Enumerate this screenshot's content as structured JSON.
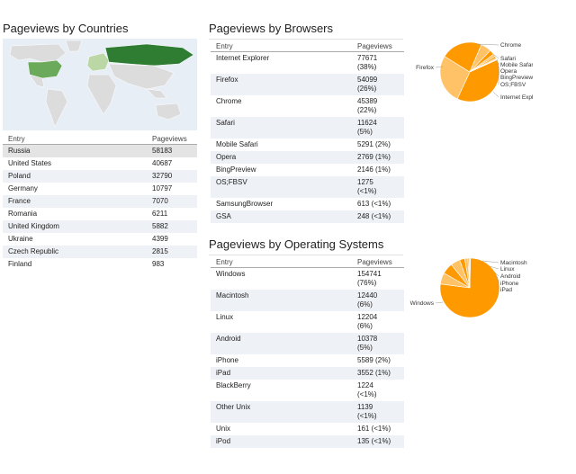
{
  "countries": {
    "title": "Pageviews by Countries",
    "col_entry": "Entry",
    "col_value": "Pageviews",
    "rows": [
      {
        "entry": "Russia",
        "value": "58183"
      },
      {
        "entry": "United States",
        "value": "40687"
      },
      {
        "entry": "Poland",
        "value": "32790"
      },
      {
        "entry": "Germany",
        "value": "10797"
      },
      {
        "entry": "France",
        "value": "7070"
      },
      {
        "entry": "Romania",
        "value": "6211"
      },
      {
        "entry": "United Kingdom",
        "value": "5882"
      },
      {
        "entry": "Ukraine",
        "value": "4399"
      },
      {
        "entry": "Czech Republic",
        "value": "2815"
      },
      {
        "entry": "Finland",
        "value": "983"
      }
    ]
  },
  "browsers": {
    "title": "Pageviews by Browsers",
    "col_entry": "Entry",
    "col_value": "Pageviews",
    "rows": [
      {
        "entry": "Internet Explorer",
        "value": "77671\n(38%)"
      },
      {
        "entry": "Firefox",
        "value": "54099\n(26%)"
      },
      {
        "entry": "Chrome",
        "value": "45389\n(22%)"
      },
      {
        "entry": "Safari",
        "value": "11624\n(5%)"
      },
      {
        "entry": "Mobile Safari",
        "value": "5291 (2%)"
      },
      {
        "entry": "Opera",
        "value": "2769 (1%)"
      },
      {
        "entry": "BingPreview",
        "value": "2146 (1%)"
      },
      {
        "entry": "OS;FBSV",
        "value": "1275\n(<1%)"
      },
      {
        "entry": "SamsungBrowser",
        "value": "613 (<1%)"
      },
      {
        "entry": "GSA",
        "value": "248 (<1%)"
      }
    ],
    "pie_labels": [
      "Chrome",
      "Safari",
      "Mobile Safari",
      "Opera",
      "BingPreview",
      "OS;FBSV",
      "Internet Explorer",
      "Firefox"
    ]
  },
  "os": {
    "title": "Pageviews by Operating Systems",
    "col_entry": "Entry",
    "col_value": "Pageviews",
    "rows": [
      {
        "entry": "Windows",
        "value": "154741\n(76%)"
      },
      {
        "entry": "Macintosh",
        "value": "12440\n(6%)"
      },
      {
        "entry": "Linux",
        "value": "12204\n(6%)"
      },
      {
        "entry": "Android",
        "value": "10378\n(5%)"
      },
      {
        "entry": "iPhone",
        "value": "5589 (2%)"
      },
      {
        "entry": "iPad",
        "value": "3552 (1%)"
      },
      {
        "entry": "BlackBerry",
        "value": "1224\n(<1%)"
      },
      {
        "entry": "Other Unix",
        "value": "1139\n(<1%)"
      },
      {
        "entry": "Unix",
        "value": "161 (<1%)"
      },
      {
        "entry": "iPod",
        "value": "135 (<1%)"
      }
    ],
    "pie_labels": [
      "Macintosh",
      "Linux",
      "Android",
      "iPhone",
      "iPad",
      "Windows"
    ]
  },
  "chart_data": [
    {
      "type": "pie",
      "title": "",
      "categories": [
        "Internet Explorer",
        "Firefox",
        "Chrome",
        "Safari",
        "Mobile Safari",
        "Opera",
        "BingPreview",
        "OS;FBSV",
        "SamsungBrowser",
        "GSA"
      ],
      "values": [
        77671,
        54099,
        45389,
        11624,
        5291,
        2769,
        2146,
        1275,
        613,
        248
      ]
    },
    {
      "type": "pie",
      "title": "",
      "categories": [
        "Windows",
        "Macintosh",
        "Linux",
        "Android",
        "iPhone",
        "iPad",
        "BlackBerry",
        "Other Unix",
        "Unix",
        "iPod"
      ],
      "values": [
        154741,
        12440,
        12204,
        10378,
        5589,
        3552,
        1224,
        1139,
        161,
        135
      ]
    }
  ],
  "colors": {
    "map_high": "#2e7d32",
    "map_mid": "#6aaa5a",
    "map_low": "#bcd7a6",
    "map_none": "#dcdcdc",
    "map_water": "#e8eef6",
    "pie_main": "#ff9900",
    "pie_alt": "#ffc266"
  }
}
